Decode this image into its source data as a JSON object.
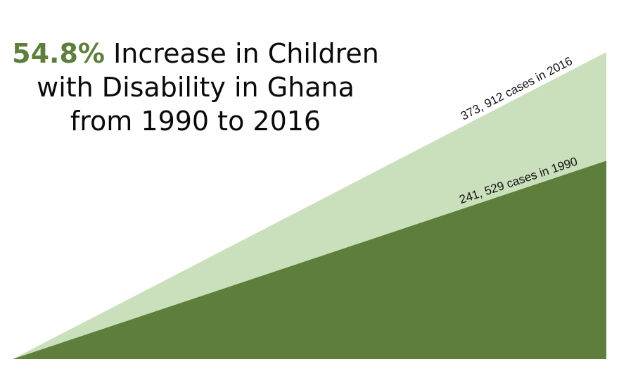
{
  "headline": {
    "highlight": "54.8%",
    "text": " Increase in Children with Disability in Ghana from 1990 to 2016"
  },
  "colors": {
    "highlight": "#5e7f3c",
    "wedge_2016": "#cadfbb",
    "wedge_1990": "#5e7f3c"
  },
  "chart_data": {
    "type": "area",
    "title": "54.8% Increase in Children with Disability in Ghana from 1990 to 2016",
    "series": [
      {
        "name": "2016",
        "value": 373912,
        "label": "373, 912 cases in 2016"
      },
      {
        "name": "1990",
        "value": 241529,
        "label": "241, 529 cases in 1990"
      }
    ],
    "percent_increase": 54.8,
    "grid": false,
    "legend": "none"
  }
}
